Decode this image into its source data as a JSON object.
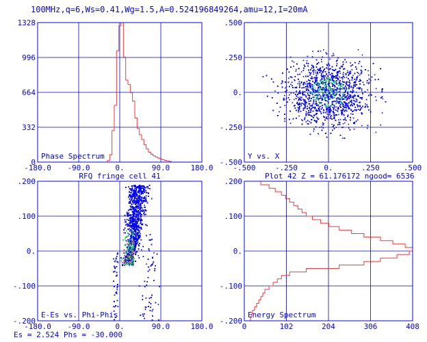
{
  "header": {
    "title": "100MHz,q=6,Ws=0.41,Wg=1.5,A=0.524196849264,amu=12,I=20mA"
  },
  "colors": {
    "axis": "#0000ff",
    "grid": "#0000cc",
    "histogram": "#ff3333",
    "scatter": "#0000ff",
    "density_mid": "#33cc66",
    "density_high": "#ff3333"
  },
  "chart_data": [
    {
      "id": "phase",
      "type": "bar",
      "annotation": "Phase Spectrum",
      "xlim": [
        -180,
        180
      ],
      "ylim": [
        0,
        1328
      ],
      "xticks": [
        "-180.0",
        "-90.0",
        "0.",
        "90.0",
        "180.0"
      ],
      "yticks": [
        "0",
        "332",
        "664",
        "996",
        "1328"
      ],
      "caption": "RFQ fringe cell 41",
      "bins": [
        {
          "x0": -27,
          "x1": -22,
          "y": 15
        },
        {
          "x0": -22,
          "x1": -17,
          "y": 70
        },
        {
          "x0": -17,
          "x1": -12,
          "y": 300
        },
        {
          "x0": -12,
          "x1": -7,
          "y": 540
        },
        {
          "x0": -7,
          "x1": -2,
          "y": 1060
        },
        {
          "x0": -2,
          "x1": 3,
          "y": 1300
        },
        {
          "x0": 3,
          "x1": 8,
          "y": 1328
        },
        {
          "x0": 8,
          "x1": 13,
          "y": 1000
        },
        {
          "x0": 13,
          "x1": 18,
          "y": 780
        },
        {
          "x0": 18,
          "x1": 23,
          "y": 740
        },
        {
          "x0": 23,
          "x1": 28,
          "y": 660
        },
        {
          "x0": 28,
          "x1": 33,
          "y": 580
        },
        {
          "x0": 33,
          "x1": 38,
          "y": 420
        },
        {
          "x0": 38,
          "x1": 43,
          "y": 320
        },
        {
          "x0": 43,
          "x1": 48,
          "y": 260
        },
        {
          "x0": 48,
          "x1": 53,
          "y": 215
        },
        {
          "x0": 53,
          "x1": 58,
          "y": 165
        },
        {
          "x0": 58,
          "x1": 63,
          "y": 125
        },
        {
          "x0": 63,
          "x1": 68,
          "y": 95
        },
        {
          "x0": 68,
          "x1": 73,
          "y": 75
        },
        {
          "x0": 73,
          "x1": 78,
          "y": 60
        },
        {
          "x0": 78,
          "x1": 83,
          "y": 48
        },
        {
          "x0": 83,
          "x1": 88,
          "y": 38
        },
        {
          "x0": 88,
          "x1": 93,
          "y": 30
        },
        {
          "x0": 93,
          "x1": 98,
          "y": 22
        },
        {
          "x0": 98,
          "x1": 103,
          "y": 16
        },
        {
          "x0": 103,
          "x1": 108,
          "y": 11
        },
        {
          "x0": 108,
          "x1": 113,
          "y": 7
        }
      ]
    },
    {
      "id": "yx",
      "type": "scatter",
      "annotation": "Y vs. X",
      "xlim": [
        -0.5,
        0.5
      ],
      "ylim": [
        -0.5,
        0.5
      ],
      "xticks": [
        "-.500",
        "-.250",
        "0.",
        ".250",
        ".500"
      ],
      "yticks": [
        "-.500",
        "-.250",
        "0.",
        ".250",
        ".500"
      ],
      "caption": "Plot 42     Z = 61.176172  ngood=  6536",
      "distribution": {
        "x_center": 0.0,
        "x_sigma": 0.21,
        "y_center": 0.0,
        "y_sigma": 0.19,
        "points": 3800
      }
    },
    {
      "id": "phase_energy",
      "type": "scatter",
      "annotation": "E-Es vs. Phi-Phis",
      "xlim": [
        -180,
        180
      ],
      "ylim": [
        -0.2,
        0.2
      ],
      "xticks": [
        "-180.0",
        "-90.0",
        "0.",
        "90.0",
        "180.0"
      ],
      "yticks": [
        "-.200",
        "-.100",
        "0.",
        ".100",
        ".200"
      ],
      "caption": "Es =    2.524 Phs =  -30.000",
      "distribution": {
        "core_phase": 15,
        "core_energy": 0.0,
        "points": 3800
      }
    },
    {
      "id": "energy",
      "type": "bar",
      "orientation": "horizontal",
      "annotation": "Energy Spectrum",
      "xlim": [
        0,
        408
      ],
      "ylim": [
        -0.2,
        0.2
      ],
      "xticks": [
        "0",
        "102",
        "204",
        "306",
        "408"
      ],
      "yticks": [
        "-.200",
        "-.100",
        "0.",
        ".100",
        ".200"
      ],
      "bins": [
        {
          "y0": 0.19,
          "y1": 0.2,
          "x": 40
        },
        {
          "y0": 0.18,
          "y1": 0.19,
          "x": 60
        },
        {
          "y0": 0.17,
          "y1": 0.18,
          "x": 75
        },
        {
          "y0": 0.16,
          "y1": 0.17,
          "x": 90
        },
        {
          "y0": 0.15,
          "y1": 0.16,
          "x": 100
        },
        {
          "y0": 0.14,
          "y1": 0.15,
          "x": 110
        },
        {
          "y0": 0.13,
          "y1": 0.14,
          "x": 120
        },
        {
          "y0": 0.12,
          "y1": 0.13,
          "x": 130
        },
        {
          "y0": 0.11,
          "y1": 0.12,
          "x": 140
        },
        {
          "y0": 0.1,
          "y1": 0.11,
          "x": 150
        },
        {
          "y0": 0.09,
          "y1": 0.1,
          "x": 165
        },
        {
          "y0": 0.08,
          "y1": 0.09,
          "x": 185
        },
        {
          "y0": 0.07,
          "y1": 0.08,
          "x": 205
        },
        {
          "y0": 0.06,
          "y1": 0.07,
          "x": 230
        },
        {
          "y0": 0.05,
          "y1": 0.06,
          "x": 260
        },
        {
          "y0": 0.04,
          "y1": 0.05,
          "x": 290
        },
        {
          "y0": 0.03,
          "y1": 0.04,
          "x": 330
        },
        {
          "y0": 0.02,
          "y1": 0.03,
          "x": 360
        },
        {
          "y0": 0.01,
          "y1": 0.02,
          "x": 390
        },
        {
          "y0": 0.0,
          "y1": 0.01,
          "x": 408
        },
        {
          "y0": -0.01,
          "y1": 0.0,
          "x": 400
        },
        {
          "y0": -0.02,
          "y1": -0.01,
          "x": 370
        },
        {
          "y0": -0.03,
          "y1": -0.02,
          "x": 330
        },
        {
          "y0": -0.04,
          "y1": -0.03,
          "x": 290
        },
        {
          "y0": -0.05,
          "y1": -0.04,
          "x": 230
        },
        {
          "y0": -0.06,
          "y1": -0.05,
          "x": 150
        },
        {
          "y0": -0.07,
          "y1": -0.06,
          "x": 110
        },
        {
          "y0": -0.08,
          "y1": -0.07,
          "x": 90
        },
        {
          "y0": -0.09,
          "y1": -0.08,
          "x": 80
        },
        {
          "y0": -0.1,
          "y1": -0.09,
          "x": 70
        },
        {
          "y0": -0.11,
          "y1": -0.1,
          "x": 60
        },
        {
          "y0": -0.12,
          "y1": -0.11,
          "x": 50
        },
        {
          "y0": -0.13,
          "y1": -0.12,
          "x": 45
        },
        {
          "y0": -0.14,
          "y1": -0.13,
          "x": 40
        },
        {
          "y0": -0.15,
          "y1": -0.14,
          "x": 35
        },
        {
          "y0": -0.16,
          "y1": -0.15,
          "x": 30
        },
        {
          "y0": -0.17,
          "y1": -0.16,
          "x": 25
        },
        {
          "y0": -0.18,
          "y1": -0.17,
          "x": 20
        },
        {
          "y0": -0.19,
          "y1": -0.18,
          "x": 18
        },
        {
          "y0": -0.2,
          "y1": -0.19,
          "x": 15
        }
      ]
    }
  ]
}
